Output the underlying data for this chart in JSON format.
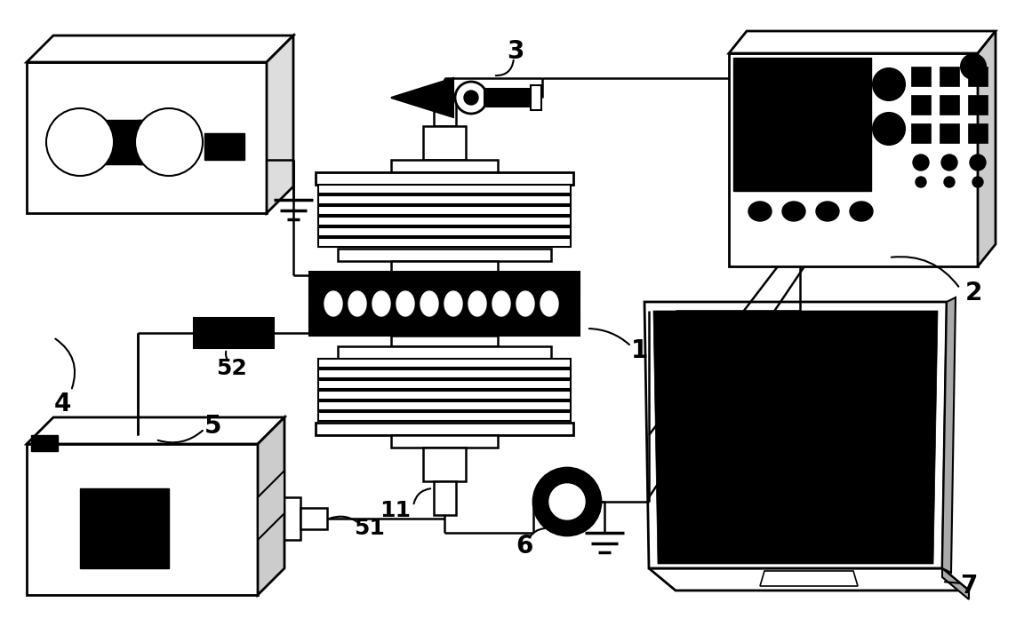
{
  "bg_color": "#ffffff",
  "fig_width": 11.43,
  "fig_height": 7.14,
  "dpi": 100
}
